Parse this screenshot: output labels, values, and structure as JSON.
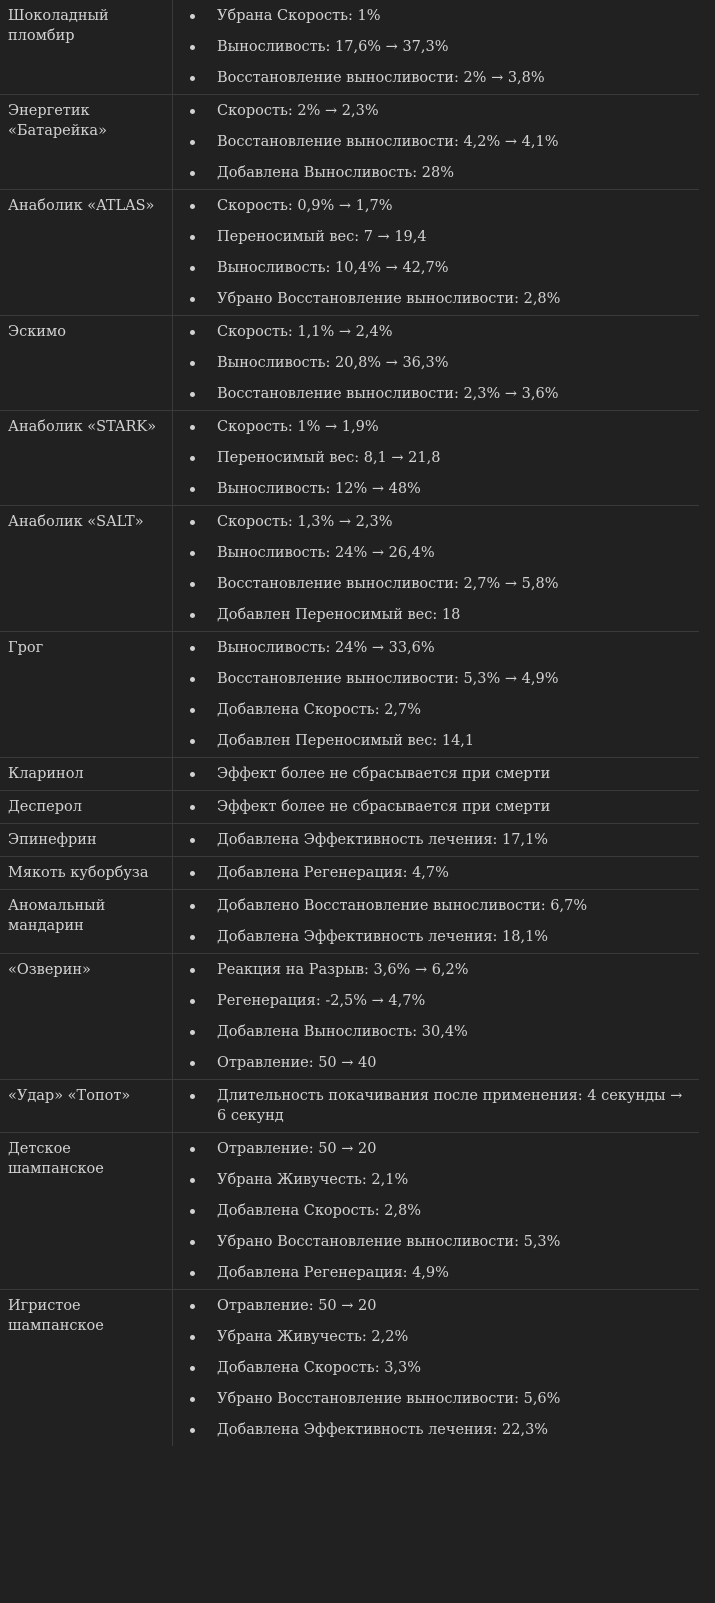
{
  "rows": [
    {
      "name": "Шоколадный пломбир",
      "effects": [
        "Убрана Скорость: 1%",
        "Выносливость: 17,6% → 37,3%",
        "Восстановление выносливости: 2% → 3,8%"
      ]
    },
    {
      "name": "Энергетик «Батарейка»",
      "effects": [
        "Скорость: 2% → 2,3%",
        "Восстановление выносливости: 4,2% → 4,1%",
        "Добавлена Выносливость: 28%"
      ]
    },
    {
      "name": "Анаболик «ATLAS»",
      "effects": [
        "Скорость: 0,9% → 1,7%",
        "Переносимый вес: 7 → 19,4",
        "Выносливость: 10,4% → 42,7%",
        "Убрано Восстановление выносливости: 2,8%"
      ]
    },
    {
      "name": "Эскимо",
      "effects": [
        "Скорость: 1,1% → 2,4%",
        "Выносливость: 20,8% → 36,3%",
        "Восстановление выносливости: 2,3% → 3,6%"
      ]
    },
    {
      "name": "Анаболик «STARK»",
      "effects": [
        "Скорость: 1% → 1,9%",
        "Переносимый вес: 8,1 → 21,8",
        "Выносливость: 12% → 48%"
      ]
    },
    {
      "name": "Анаболик «SALT»",
      "effects": [
        "Скорость: 1,3% → 2,3%",
        "Выносливость: 24% → 26,4%",
        "Восстановление выносливости: 2,7% → 5,8%",
        "Добавлен Переносимый вес: 18"
      ]
    },
    {
      "name": "Грог",
      "effects": [
        "Выносливость: 24% → 33,6%",
        "Восстановление выносливости: 5,3% → 4,9%",
        "Добавлена Скорость: 2,7%",
        "Добавлен Переносимый вес: 14,1"
      ]
    },
    {
      "name": "Кларинол",
      "effects": [
        "Эффект более не сбрасывается при смерти"
      ]
    },
    {
      "name": "Десперол",
      "effects": [
        "Эффект более не сбрасывается при смерти"
      ]
    },
    {
      "name": "Эпинефрин",
      "effects": [
        "Добавлена Эффективность лечения: 17,1%"
      ]
    },
    {
      "name": "Мякоть куборбуза",
      "effects": [
        "Добавлена Регенерация: 4,7%"
      ]
    },
    {
      "name": "Аномальный мандарин",
      "effects": [
        "Добавлено Восстановление выносливости: 6,7%",
        "Добавлена Эффективность лечения: 18,1%"
      ]
    },
    {
      "name": "«Озверин»",
      "effects": [
        "Реакция на Разрыв: 3,6% → 6,2%",
        "Регенерация: -2,5% → 4,7%",
        "Добавлена Выносливость: 30,4%",
        "Отравление: 50 → 40"
      ]
    },
    {
      "name": "«Удар» «Топот»",
      "effects": [
        "Длительность покачивания после применения: 4 секунды → 6 секунд"
      ]
    },
    {
      "name": "Детское шампанское",
      "effects": [
        "Отравление: 50 → 20",
        "Убрана Живучесть: 2,1%",
        "Добавлена Скорость: 2,8%",
        "Убрано Восстановление выносливости: 5,3%",
        "Добавлена Регенерация: 4,9%"
      ]
    },
    {
      "name": "Игристое шампанское",
      "effects": [
        "Отравление: 50 → 20",
        "Убрана Живучесть: 2,2%",
        "Добавлена Скорость: 3,3%",
        "Убрано Восстановление выносливости: 5,6%",
        "Добавлена Эффективность лечения: 22,3%"
      ]
    }
  ]
}
